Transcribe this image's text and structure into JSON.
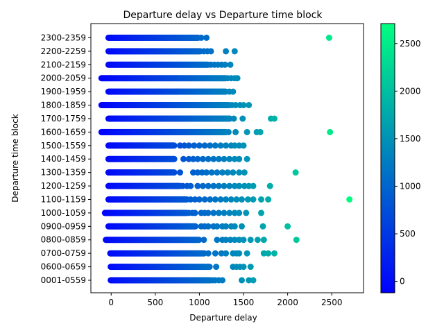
{
  "chart_data": {
    "type": "scatter",
    "title": "Departure delay vs Departure time block",
    "xlabel": "Departure delay",
    "ylabel": "Departure time block",
    "xlim": [
      -230,
      2860
    ],
    "x_ticks": [
      0,
      500,
      1000,
      1500,
      2000,
      2500
    ],
    "categories": [
      "0001-0559",
      "0600-0659",
      "0700-0759",
      "0800-0859",
      "0900-0959",
      "1000-1059",
      "1100-1159",
      "1200-1259",
      "1300-1359",
      "1400-1459",
      "1500-1559",
      "1600-1659",
      "1700-1759",
      "1800-1859",
      "1900-1959",
      "2000-2059",
      "2100-2159",
      "2200-2259",
      "2300-2359"
    ],
    "colorbar": {
      "label": "",
      "range": [
        -120,
        2710
      ],
      "ticks": [
        0,
        500,
        1000,
        1500,
        2000,
        2500
      ],
      "colormap": "winter",
      "color_low": "#0000ff",
      "color_high": "#00ff80"
    },
    "grid": false,
    "series": [
      {
        "marker": "circle",
        "rows": [
          {
            "block": "0001-0559",
            "dense_min": -5,
            "dense_max": 1130,
            "points": [
              1150,
              1180,
              1220,
              1260,
              1480,
              1560,
              1610
            ]
          },
          {
            "block": "0600-0659",
            "dense_min": -5,
            "dense_max": 1120,
            "points": [
              1190,
              1380,
              1420,
              1460,
              1500,
              1580
            ]
          },
          {
            "block": "0700-0759",
            "dense_min": -10,
            "dense_max": 1060,
            "points": [
              1100,
              1180,
              1250,
              1300,
              1380,
              1420,
              1450,
              1540,
              1730,
              1780,
              1850
            ]
          },
          {
            "block": "0800-0859",
            "dense_min": -60,
            "dense_max": 1000,
            "points": [
              1050,
              1200,
              1260,
              1300,
              1350,
              1400,
              1450,
              1500,
              1580,
              1660,
              1730,
              2100
            ]
          },
          {
            "block": "0900-0959",
            "dense_min": -30,
            "dense_max": 960,
            "points": [
              1020,
              1060,
              1100,
              1160,
              1200,
              1260,
              1300,
              1360,
              1400,
              1480,
              1720,
              2000
            ]
          },
          {
            "block": "1000-1059",
            "dense_min": -70,
            "dense_max": 850,
            "points": [
              880,
              920,
              950,
              1020,
              1060,
              1100,
              1160,
              1220,
              1280,
              1340,
              1400,
              1450,
              1530,
              1700
            ]
          },
          {
            "block": "1100-1159",
            "dense_min": -30,
            "dense_max": 860,
            "points": [
              900,
              950,
              1000,
              1060,
              1120,
              1180,
              1240,
              1300,
              1360,
              1420,
              1480,
              1550,
              1610,
              1700,
              1780,
              2700
            ]
          },
          {
            "block": "1200-1259",
            "dense_min": -30,
            "dense_max": 780,
            "points": [
              810,
              860,
              900,
              980,
              1040,
              1100,
              1160,
              1220,
              1280,
              1340,
              1400,
              1450,
              1510,
              1560,
              1610,
              1800
            ]
          },
          {
            "block": "1300-1359",
            "dense_min": -30,
            "dense_max": 720,
            "points": [
              780,
              930,
              980,
              1030,
              1080,
              1140,
              1200,
              1260,
              1320,
              1380,
              1450,
              1510,
              2090
            ]
          },
          {
            "block": "1400-1459",
            "dense_min": -30,
            "dense_max": 720,
            "points": [
              820,
              880,
              930,
              980,
              1040,
              1100,
              1160,
              1220,
              1280,
              1340,
              1400,
              1450,
              1540
            ]
          },
          {
            "block": "1500-1559",
            "dense_min": -30,
            "dense_max": 720,
            "points": [
              780,
              830,
              880,
              940,
              1000,
              1060,
              1120,
              1180,
              1240,
              1300,
              1360,
              1400,
              1450,
              1500
            ]
          },
          {
            "block": "1600-1659",
            "dense_min": -110,
            "dense_max": 1300,
            "points": [
              1330,
              1410,
              1540,
              1650,
              1690,
              2480
            ]
          },
          {
            "block": "1700-1759",
            "dense_min": -30,
            "dense_max": 1350,
            "points": [
              1390,
              1490,
              1810,
              1850
            ]
          },
          {
            "block": "1800-1859",
            "dense_min": -110,
            "dense_max": 1340,
            "points": [
              1370,
              1410,
              1460,
              1500,
              1560
            ]
          },
          {
            "block": "1900-1959",
            "dense_min": -30,
            "dense_max": 1300,
            "points": [
              1340,
              1380
            ]
          },
          {
            "block": "2000-2059",
            "dense_min": -110,
            "dense_max": 1300,
            "points": [
              1320,
              1360,
              1400,
              1430
            ]
          },
          {
            "block": "2100-2159",
            "dense_min": -30,
            "dense_max": 1100,
            "points": [
              1130,
              1170,
              1210,
              1250,
              1290,
              1350
            ]
          },
          {
            "block": "2200-2259",
            "dense_min": -30,
            "dense_max": 1010,
            "points": [
              1050,
              1090,
              1130,
              1300,
              1400
            ]
          },
          {
            "block": "2300-2359",
            "dense_min": -30,
            "dense_max": 990,
            "points": [
              1020,
              1080,
              2470
            ]
          }
        ]
      }
    ]
  }
}
